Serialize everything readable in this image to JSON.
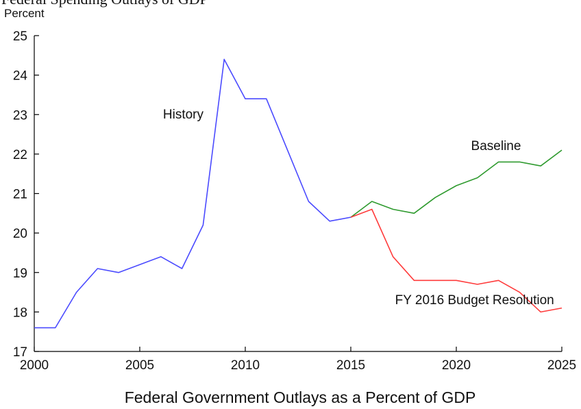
{
  "header_text": "Federal Spending Outlays of GDP",
  "chart_data": {
    "type": "line",
    "title": "Federal Government Outlays as a Percent of GDP",
    "ylabel": "Percent",
    "xlabel": "",
    "xlim": [
      2000,
      2025
    ],
    "ylim": [
      17,
      25
    ],
    "xticks": [
      2000,
      2005,
      2010,
      2015,
      2020,
      2025
    ],
    "yticks": [
      17,
      18,
      19,
      20,
      21,
      22,
      23,
      24,
      25
    ],
    "grid": false,
    "legend": "none",
    "series": [
      {
        "name": "History",
        "color": "#4a4aff",
        "x": [
          2000,
          2001,
          2002,
          2003,
          2004,
          2005,
          2006,
          2007,
          2008,
          2009,
          2010,
          2011,
          2012,
          2013,
          2014,
          2015
        ],
        "y": [
          17.6,
          17.6,
          18.5,
          19.1,
          19.0,
          19.2,
          19.4,
          19.1,
          20.2,
          24.4,
          23.4,
          23.4,
          22.1,
          20.8,
          20.3,
          20.4
        ]
      },
      {
        "name": "Baseline",
        "color": "#2e9a2e",
        "x": [
          2015,
          2016,
          2017,
          2018,
          2019,
          2020,
          2021,
          2022,
          2023,
          2024,
          2025
        ],
        "y": [
          20.4,
          20.8,
          20.6,
          20.5,
          20.9,
          21.2,
          21.4,
          21.8,
          21.8,
          21.7,
          22.1
        ]
      },
      {
        "name": "FY 2016 Budget Resolution",
        "color": "#ff3b3b",
        "x": [
          2015,
          2016,
          2017,
          2018,
          2019,
          2020,
          2021,
          2022,
          2023,
          2024,
          2025
        ],
        "y": [
          20.4,
          20.6,
          19.4,
          18.8,
          18.8,
          18.8,
          18.7,
          18.8,
          18.5,
          18.0,
          18.1
        ]
      }
    ],
    "annotations": [
      {
        "text": "History",
        "x": 2006.1,
        "y": 22.9
      },
      {
        "text": "Baseline",
        "x": 2020.7,
        "y": 22.1
      },
      {
        "text": "FY 2016 Budget Resolution",
        "x": 2017.1,
        "y": 18.2
      }
    ]
  }
}
